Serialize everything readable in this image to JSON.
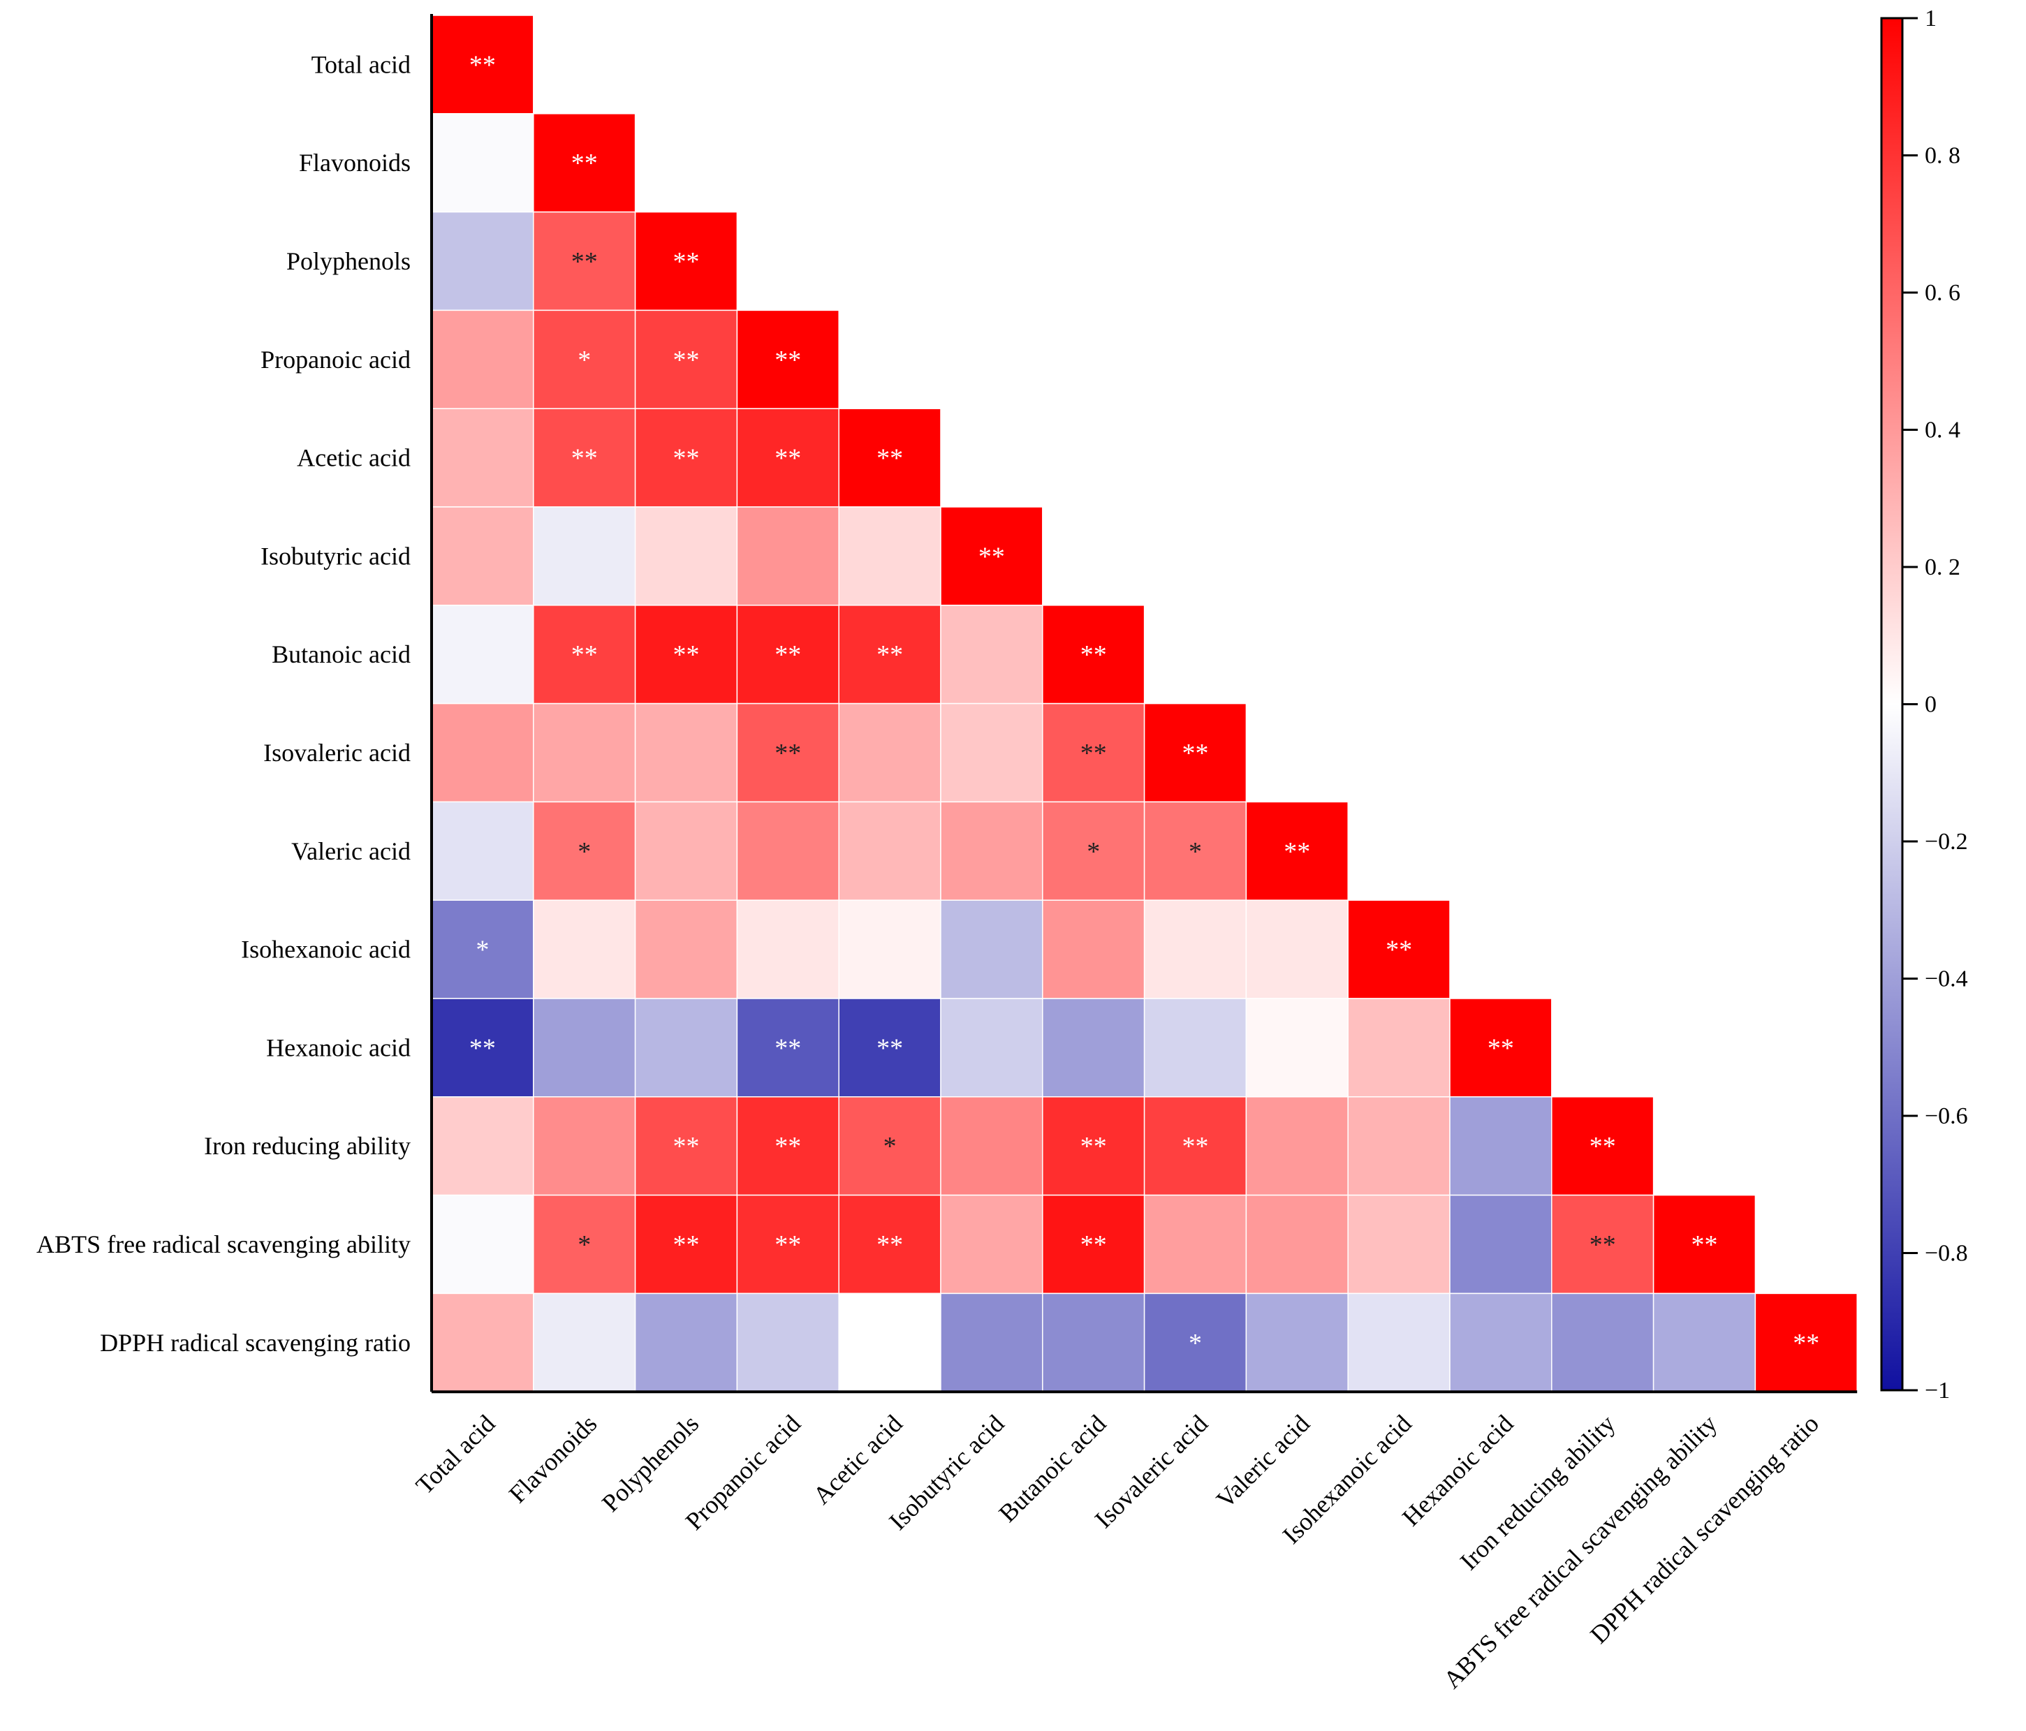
{
  "chart_data": {
    "type": "heatmap",
    "subtype": "lower-triangular correlation matrix",
    "labels": [
      "Total acid",
      "Flavonoids",
      "Polyphenols",
      "Propanoic acid",
      "Acetic acid",
      "Isobutyric acid",
      "Butanoic acid",
      "Isovaleric acid",
      "Valeric acid",
      "Isohexanoic acid",
      "Hexanoic acid",
      "Iron reducing ability",
      "ABTS free radical scavenging ability",
      "DPPH radical scavenging ratio"
    ],
    "values": [
      [
        1
      ],
      [
        -0.02,
        1
      ],
      [
        -0.25,
        0.65,
        1
      ],
      [
        0.38,
        0.7,
        0.75,
        1
      ],
      [
        0.3,
        0.7,
        0.78,
        0.85,
        1
      ],
      [
        0.3,
        -0.08,
        0.15,
        0.42,
        0.15,
        1
      ],
      [
        -0.05,
        0.75,
        0.9,
        0.88,
        0.82,
        0.25,
        1
      ],
      [
        0.4,
        0.35,
        0.32,
        0.65,
        0.32,
        0.22,
        0.65,
        1
      ],
      [
        -0.12,
        0.55,
        0.3,
        0.5,
        0.28,
        0.38,
        0.55,
        0.55,
        1
      ],
      [
        -0.55,
        0.1,
        0.35,
        0.1,
        0.05,
        -0.28,
        0.42,
        0.1,
        0.1,
        1
      ],
      [
        -0.85,
        -0.4,
        -0.3,
        -0.7,
        -0.8,
        -0.2,
        -0.4,
        -0.18,
        0.03,
        0.25,
        1
      ],
      [
        0.2,
        0.45,
        0.7,
        0.82,
        0.65,
        0.48,
        0.82,
        0.75,
        0.4,
        0.3,
        -0.4,
        1
      ],
      [
        -0.02,
        0.62,
        0.88,
        0.82,
        0.82,
        0.35,
        0.92,
        0.38,
        0.4,
        0.25,
        -0.5,
        0.68,
        1
      ],
      [
        0.3,
        -0.08,
        -0.38,
        -0.22,
        0,
        -0.48,
        -0.48,
        -0.6,
        -0.35,
        -0.12,
        -0.35,
        -0.45,
        -0.35,
        1
      ]
    ],
    "significance": [
      [
        "**"
      ],
      [
        "",
        "**"
      ],
      [
        "",
        "**",
        "**"
      ],
      [
        "",
        "*",
        "**",
        "**"
      ],
      [
        "",
        "**",
        "**",
        "**",
        "**"
      ],
      [
        "",
        "",
        "",
        "",
        "",
        "**"
      ],
      [
        "",
        "**",
        "**",
        "**",
        "**",
        "",
        "**"
      ],
      [
        "",
        "",
        "",
        "**",
        "",
        "",
        "**",
        "**"
      ],
      [
        "",
        "*",
        "",
        "",
        "",
        "",
        "*",
        "*",
        "**"
      ],
      [
        "*",
        "",
        "",
        "",
        "",
        "",
        "",
        "",
        "",
        "**"
      ],
      [
        "**",
        "",
        "",
        "**",
        "**",
        "",
        "",
        "",
        "",
        "",
        "**"
      ],
      [
        "",
        "",
        "**",
        "**",
        "*",
        "",
        "**",
        "**",
        "",
        "",
        "",
        "**"
      ],
      [
        "",
        "*",
        "**",
        "**",
        "**",
        "",
        "**",
        "",
        "",
        "",
        "",
        "**",
        "**"
      ],
      [
        "",
        "",
        "",
        "",
        "",
        "",
        "",
        "*",
        "",
        "",
        "",
        "",
        "",
        "**"
      ]
    ],
    "colorbar": {
      "range": [
        -1,
        1
      ],
      "ticks": [
        1,
        0.8,
        0.6,
        0.4,
        0.2,
        0,
        -0.2,
        -0.4,
        -0.6,
        -0.8,
        -1
      ],
      "tick_labels": [
        "1",
        "0. 8",
        "0. 6",
        "0. 4",
        "0. 2",
        "0",
        "−0.2",
        "−0.4",
        "−0.6",
        "−0.8",
        "−1"
      ],
      "colors": {
        "positive": "#ff0000",
        "zero": "#ffffff",
        "negative": "#1010a0"
      }
    },
    "legend_placement": "right",
    "title": "",
    "xlabel": "",
    "ylabel": ""
  }
}
